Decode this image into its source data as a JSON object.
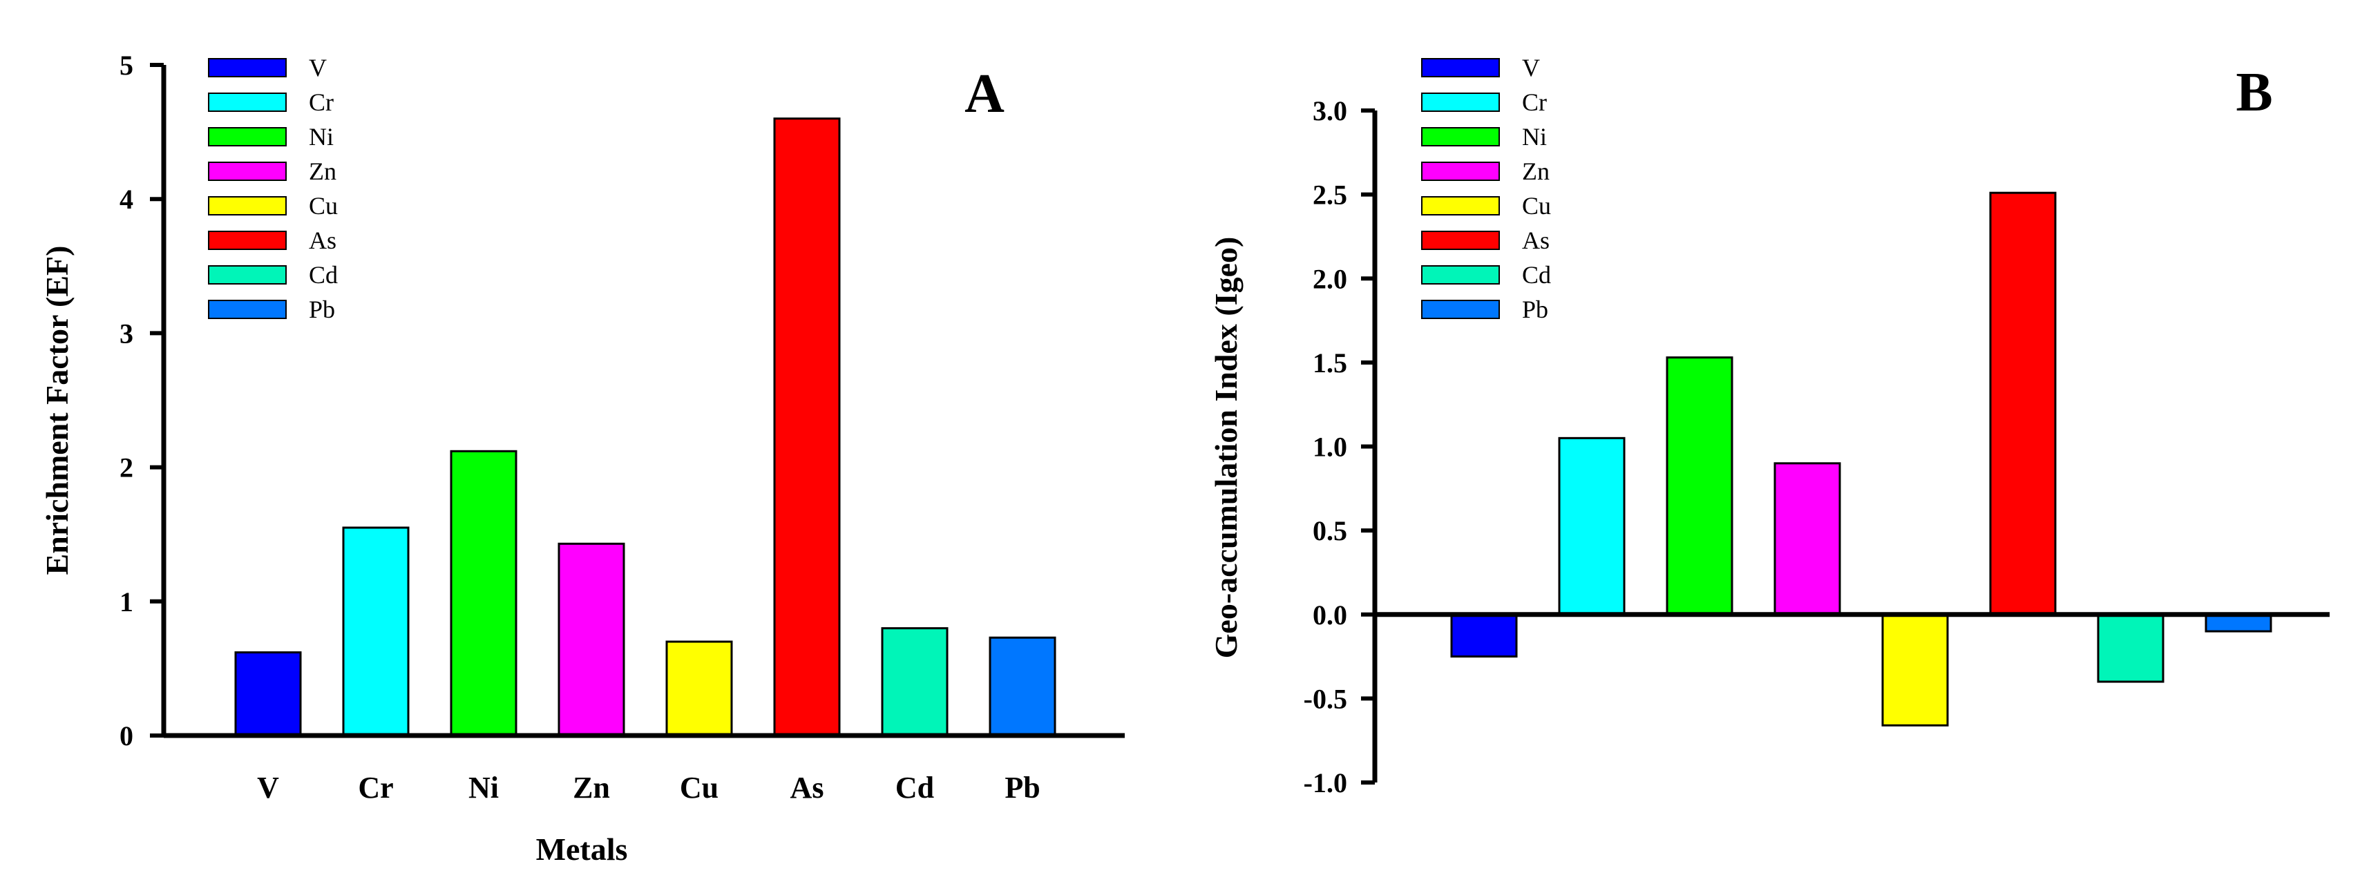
{
  "chart_data": [
    {
      "type": "bar",
      "panel": "A",
      "categories": [
        "V",
        "Cr",
        "Ni",
        "Zn",
        "Cu",
        "As",
        "Cd",
        "Pb"
      ],
      "values": [
        0.62,
        1.55,
        2.12,
        1.43,
        0.7,
        4.6,
        0.8,
        0.73
      ],
      "colors": [
        "#0000ff",
        "#00ffff",
        "#00ff00",
        "#ff00ff",
        "#ffff00",
        "#ff0000",
        "#00f5b8",
        "#0077ff"
      ],
      "xlabel": "Metals",
      "ylabel": "Enrichment Factor (EF)",
      "ylim": [
        0,
        5
      ],
      "yticks": [
        0,
        1,
        2,
        3,
        4,
        5
      ],
      "ytick_labels": [
        "0",
        "1",
        "2",
        "3",
        "4",
        "5"
      ],
      "show_category_labels": true,
      "legend": [
        "V",
        "Cr",
        "Ni",
        "Zn",
        "Cu",
        "As",
        "Cd",
        "Pb"
      ],
      "legend_position": "top-left",
      "grid": false
    },
    {
      "type": "bar",
      "panel": "B",
      "categories": [
        "V",
        "Cr",
        "Ni",
        "Zn",
        "Cu",
        "As",
        "Cd",
        "Pb"
      ],
      "values": [
        -0.25,
        1.05,
        1.53,
        0.9,
        -0.66,
        2.51,
        -0.4,
        -0.1
      ],
      "colors": [
        "#0000ff",
        "#00ffff",
        "#00ff00",
        "#ff00ff",
        "#ffff00",
        "#ff0000",
        "#00f5b8",
        "#0077ff"
      ],
      "xlabel": "",
      "ylabel": "Geo-accumulation Index (Igeo)",
      "ylim": [
        -1.0,
        3.0
      ],
      "yticks": [
        -1.0,
        -0.5,
        0.0,
        0.5,
        1.0,
        1.5,
        2.0,
        2.5,
        3.0
      ],
      "ytick_labels": [
        "-1.0",
        "-0.5",
        "0.0",
        "0.5",
        "1.0",
        "1.5",
        "2.0",
        "2.5",
        "3.0"
      ],
      "show_category_labels": false,
      "legend": [
        "V",
        "Cr",
        "Ni",
        "Zn",
        "Cu",
        "As",
        "Cd",
        "Pb"
      ],
      "legend_position": "top-left",
      "grid": false
    }
  ]
}
